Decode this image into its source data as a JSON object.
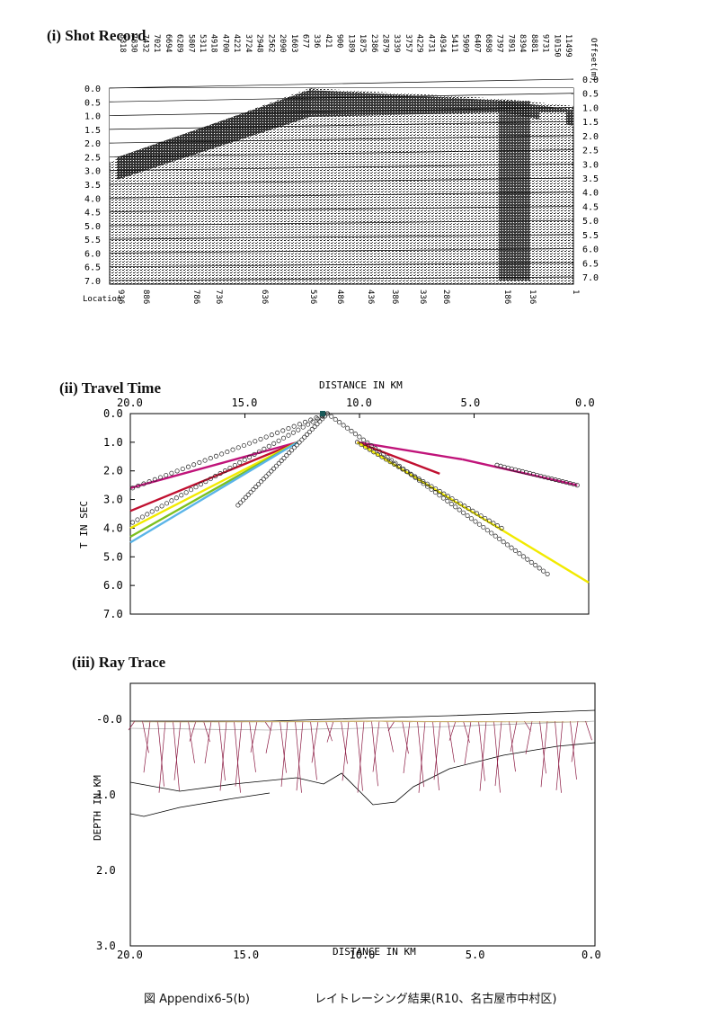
{
  "panels": {
    "shot_title": "(i) Shot Record",
    "travel_title": "(ii) Travel Time",
    "ray_title": "(iii) Ray Trace"
  },
  "shot_record": {
    "offset_label": "Offset(m)",
    "offset_values": [
      "8318",
      "7830",
      "7432",
      "7021",
      "6694",
      "6289",
      "5807",
      "5311",
      "4918",
      "4700",
      "4221",
      "3724",
      "2948",
      "2562",
      "2090",
      "1603",
      "677",
      "336",
      "421",
      "900",
      "1389",
      "1875",
      "2386",
      "2879",
      "3339",
      "3757",
      "4229",
      "4731",
      "4934",
      "5411",
      "5909",
      "6407",
      "6898",
      "7397",
      "7891",
      "8394",
      "8881",
      "9731",
      "10150",
      "11499"
    ],
    "time_ticks": [
      "0.0",
      "0.5",
      "1.0",
      "1.5",
      "2.0",
      "2.5",
      "3.0",
      "3.5",
      "4.0",
      "4.5",
      "5.0",
      "5.5",
      "6.0",
      "6.5",
      "7.0"
    ],
    "location_label": "Location",
    "locations": [
      "936",
      "886",
      "786",
      "736",
      "636",
      "536",
      "486",
      "436",
      "386",
      "336",
      "286",
      "186",
      "136",
      "1"
    ]
  },
  "travel_time": {
    "top_label": "DISTANCE IN KM",
    "x_ticks": [
      "20.0",
      "15.0",
      "10.0",
      "5.0",
      "0.0"
    ],
    "ylabel": "T IN SEC",
    "y_ticks": [
      "0.0",
      "1.0",
      "2.0",
      "3.0",
      "4.0",
      "5.0",
      "6.0",
      "7.0"
    ],
    "colors": {
      "magenta": "#c0147a",
      "red": "#c01030",
      "yellow": "#f2ea00",
      "green": "#7cc020",
      "cyan": "#5ab4e8"
    }
  },
  "ray_trace": {
    "ylabel": "DEPTH IN KM",
    "y_ticks": [
      "-0.0",
      "1.0",
      "2.0",
      "3.0"
    ],
    "x_ticks": [
      "20.0",
      "15.0",
      "10.0",
      "5.0",
      "0.0"
    ],
    "xlabel": "DISTANCE IN KM",
    "ray_color": "#8a1840"
  },
  "caption": {
    "left": "図 Appendix6-5(b)",
    "right": "レイトレーシング結果(R10、名古屋市中村区)"
  }
}
